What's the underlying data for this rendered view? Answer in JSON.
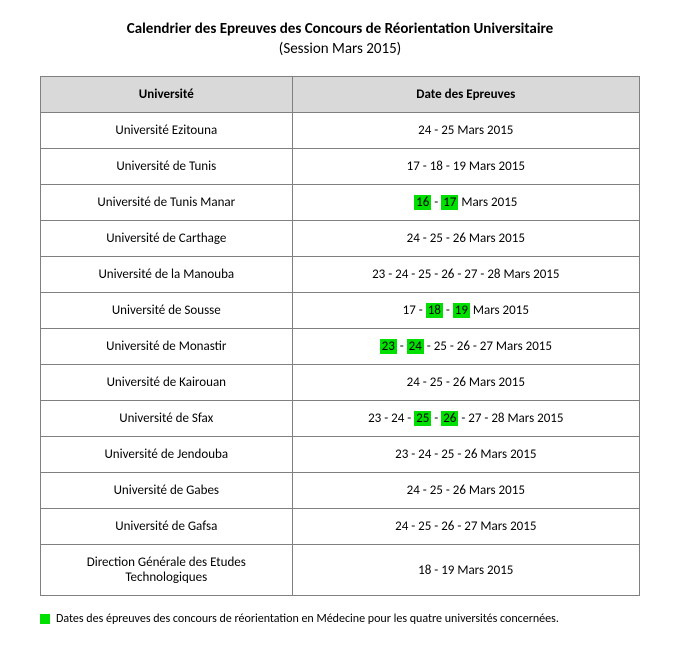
{
  "title": "Calendrier des Epreuves des Concours de Réorientation Universitaire",
  "subtitle": "(Session Mars 2015)",
  "columns": [
    "Université",
    "Date des Epreuves"
  ],
  "month_suffix": "  Mars 2015",
  "highlight_color": "#00e000",
  "header_bg": "#d9d9d9",
  "border_color": "#808080",
  "rows": [
    {
      "name": "Université Ezitouna",
      "days": [
        "24",
        "25"
      ],
      "hl": []
    },
    {
      "name": "Université de Tunis",
      "days": [
        "17",
        "18",
        "19"
      ],
      "hl": []
    },
    {
      "name": "Université de Tunis Manar",
      "days": [
        "16",
        "17"
      ],
      "hl": [
        0,
        1
      ]
    },
    {
      "name": "Université de Carthage",
      "days": [
        "24",
        "25",
        "26"
      ],
      "hl": []
    },
    {
      "name": "Université de la Manouba",
      "days": [
        "23",
        "24",
        "25",
        "26",
        "27",
        "28"
      ],
      "hl": [],
      "sep": " -"
    },
    {
      "name": "Université de Sousse",
      "days": [
        "17",
        "18",
        "19"
      ],
      "hl": [
        1,
        2
      ]
    },
    {
      "name": "Université de Monastir",
      "days": [
        "23",
        "24",
        "25",
        "26",
        "27"
      ],
      "hl": [
        0,
        1
      ],
      "extra_space": true
    },
    {
      "name": "Université de Kairouan",
      "days": [
        "24",
        "25",
        "26"
      ],
      "hl": []
    },
    {
      "name": "Université de Sfax",
      "days": [
        "23",
        "24",
        "25",
        "26",
        "27",
        "28"
      ],
      "hl": [
        2,
        3
      ],
      "sep_after_hl": true
    },
    {
      "name": "Université de Jendouba",
      "days": [
        "23",
        "24",
        "25",
        "26"
      ],
      "hl": [],
      "sep": " -"
    },
    {
      "name": "Université de Gabes",
      "days": [
        "24",
        "25",
        "26"
      ],
      "hl": [],
      "sep": " -"
    },
    {
      "name": "Université de Gafsa",
      "days": [
        "24",
        "25",
        "26",
        "27"
      ],
      "hl": [],
      "sep": " -"
    },
    {
      "name": "Direction Générale des Etudes Technologiques",
      "days": [
        "18",
        "19"
      ],
      "hl": []
    }
  ],
  "legend": "Dates des épreuves des concours de réorientation en Médecine pour les quatre universités concernées."
}
